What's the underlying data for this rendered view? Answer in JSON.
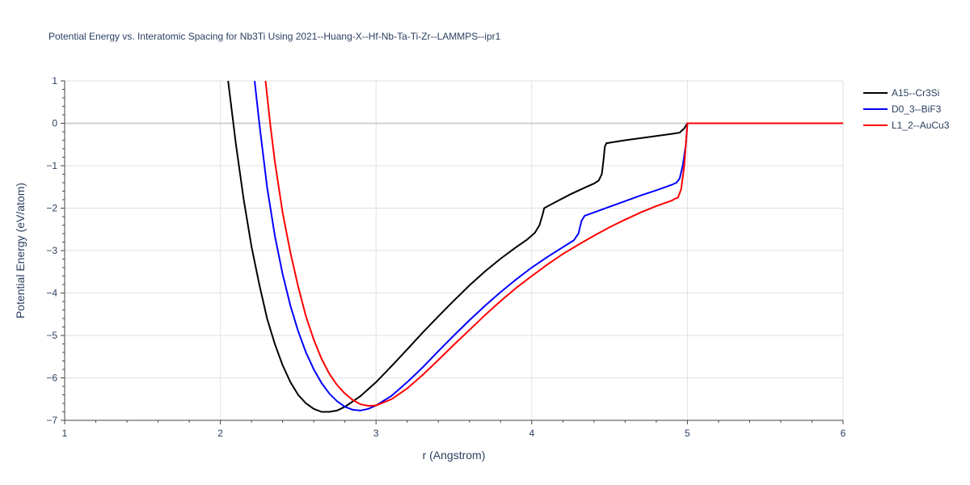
{
  "chart_data": {
    "type": "line",
    "title": "Potential Energy vs. Interatomic Spacing for Nb3Ti Using 2021--Huang-X--Hf-Nb-Ta-Ti-Zr--LAMMPS--ipr1",
    "xlabel": "r (Angstrom)",
    "ylabel": "Potential Energy (eV/atom)",
    "xlim": [
      1,
      6
    ],
    "ylim": [
      -7,
      1
    ],
    "x_ticks": [
      1,
      2,
      3,
      4,
      5,
      6
    ],
    "y_ticks": [
      1,
      0,
      -1,
      -2,
      -3,
      -4,
      -5,
      -6,
      -7
    ],
    "x_tick_labels": [
      "1",
      "2",
      "3",
      "4",
      "5",
      "6"
    ],
    "y_tick_labels": [
      "1",
      "0",
      "−1",
      "−2",
      "−3",
      "−4",
      "−5",
      "−6",
      "−7"
    ],
    "grid": true,
    "legend_position": "top-right outside",
    "series": [
      {
        "name": "A15--Cr3Si",
        "color": "#000000",
        "points": [
          [
            2.05,
            1.0
          ],
          [
            2.1,
            -0.5
          ],
          [
            2.15,
            -1.8
          ],
          [
            2.2,
            -2.9
          ],
          [
            2.25,
            -3.8
          ],
          [
            2.3,
            -4.6
          ],
          [
            2.35,
            -5.2
          ],
          [
            2.4,
            -5.7
          ],
          [
            2.45,
            -6.1
          ],
          [
            2.5,
            -6.4
          ],
          [
            2.55,
            -6.6
          ],
          [
            2.6,
            -6.73
          ],
          [
            2.65,
            -6.8
          ],
          [
            2.7,
            -6.8
          ],
          [
            2.75,
            -6.77
          ],
          [
            2.8,
            -6.68
          ],
          [
            2.9,
            -6.43
          ],
          [
            3.0,
            -6.1
          ],
          [
            3.1,
            -5.72
          ],
          [
            3.2,
            -5.33
          ],
          [
            3.3,
            -4.93
          ],
          [
            3.4,
            -4.55
          ],
          [
            3.5,
            -4.18
          ],
          [
            3.6,
            -3.82
          ],
          [
            3.7,
            -3.49
          ],
          [
            3.8,
            -3.19
          ],
          [
            3.9,
            -2.92
          ],
          [
            3.97,
            -2.74
          ],
          [
            4.02,
            -2.58
          ],
          [
            4.05,
            -2.4
          ],
          [
            4.07,
            -2.15
          ],
          [
            4.08,
            -2.0
          ],
          [
            4.1,
            -1.96
          ],
          [
            4.15,
            -1.86
          ],
          [
            4.25,
            -1.67
          ],
          [
            4.35,
            -1.5
          ],
          [
            4.4,
            -1.42
          ],
          [
            4.43,
            -1.35
          ],
          [
            4.45,
            -1.2
          ],
          [
            4.46,
            -0.9
          ],
          [
            4.47,
            -0.55
          ],
          [
            4.48,
            -0.47
          ],
          [
            4.6,
            -0.4
          ],
          [
            4.7,
            -0.35
          ],
          [
            4.8,
            -0.3
          ],
          [
            4.9,
            -0.25
          ],
          [
            4.95,
            -0.22
          ],
          [
            4.98,
            -0.12
          ],
          [
            5.0,
            0.0
          ],
          [
            5.5,
            0.0
          ],
          [
            6.0,
            0.0
          ]
        ]
      },
      {
        "name": "D0_3--BiF3",
        "color": "#0000ff",
        "points": [
          [
            2.22,
            1.0
          ],
          [
            2.25,
            0.0
          ],
          [
            2.3,
            -1.5
          ],
          [
            2.35,
            -2.65
          ],
          [
            2.4,
            -3.55
          ],
          [
            2.45,
            -4.3
          ],
          [
            2.5,
            -4.9
          ],
          [
            2.55,
            -5.4
          ],
          [
            2.6,
            -5.8
          ],
          [
            2.65,
            -6.12
          ],
          [
            2.7,
            -6.37
          ],
          [
            2.75,
            -6.55
          ],
          [
            2.8,
            -6.68
          ],
          [
            2.85,
            -6.75
          ],
          [
            2.9,
            -6.77
          ],
          [
            2.95,
            -6.73
          ],
          [
            3.0,
            -6.65
          ],
          [
            3.1,
            -6.42
          ],
          [
            3.2,
            -6.1
          ],
          [
            3.3,
            -5.75
          ],
          [
            3.4,
            -5.37
          ],
          [
            3.5,
            -5.0
          ],
          [
            3.6,
            -4.64
          ],
          [
            3.7,
            -4.3
          ],
          [
            3.8,
            -3.98
          ],
          [
            3.9,
            -3.68
          ],
          [
            4.0,
            -3.4
          ],
          [
            4.1,
            -3.15
          ],
          [
            4.2,
            -2.92
          ],
          [
            4.27,
            -2.76
          ],
          [
            4.3,
            -2.6
          ],
          [
            4.32,
            -2.3
          ],
          [
            4.34,
            -2.18
          ],
          [
            4.4,
            -2.1
          ],
          [
            4.55,
            -1.9
          ],
          [
            4.7,
            -1.7
          ],
          [
            4.8,
            -1.58
          ],
          [
            4.9,
            -1.45
          ],
          [
            4.93,
            -1.4
          ],
          [
            4.95,
            -1.3
          ],
          [
            4.97,
            -1.0
          ],
          [
            4.99,
            -0.5
          ],
          [
            5.0,
            0.0
          ],
          [
            5.5,
            0.0
          ],
          [
            6.0,
            0.0
          ]
        ]
      },
      {
        "name": "L1_2--AuCu3",
        "color": "#ff0000",
        "points": [
          [
            2.29,
            1.0
          ],
          [
            2.32,
            0.0
          ],
          [
            2.35,
            -0.9
          ],
          [
            2.4,
            -2.1
          ],
          [
            2.45,
            -3.05
          ],
          [
            2.5,
            -3.85
          ],
          [
            2.55,
            -4.55
          ],
          [
            2.6,
            -5.1
          ],
          [
            2.65,
            -5.55
          ],
          [
            2.7,
            -5.9
          ],
          [
            2.75,
            -6.17
          ],
          [
            2.8,
            -6.37
          ],
          [
            2.85,
            -6.52
          ],
          [
            2.9,
            -6.62
          ],
          [
            2.95,
            -6.66
          ],
          [
            3.0,
            -6.65
          ],
          [
            3.1,
            -6.5
          ],
          [
            3.2,
            -6.25
          ],
          [
            3.3,
            -5.93
          ],
          [
            3.4,
            -5.58
          ],
          [
            3.5,
            -5.22
          ],
          [
            3.6,
            -4.87
          ],
          [
            3.7,
            -4.52
          ],
          [
            3.8,
            -4.19
          ],
          [
            3.9,
            -3.88
          ],
          [
            4.0,
            -3.6
          ],
          [
            4.1,
            -3.33
          ],
          [
            4.2,
            -3.08
          ],
          [
            4.3,
            -2.86
          ],
          [
            4.4,
            -2.65
          ],
          [
            4.5,
            -2.45
          ],
          [
            4.6,
            -2.27
          ],
          [
            4.7,
            -2.1
          ],
          [
            4.8,
            -1.95
          ],
          [
            4.9,
            -1.82
          ],
          [
            4.92,
            -1.78
          ],
          [
            4.94,
            -1.75
          ],
          [
            4.96,
            -1.55
          ],
          [
            4.98,
            -1.0
          ],
          [
            5.0,
            0.0
          ],
          [
            5.5,
            0.0
          ],
          [
            6.0,
            0.0
          ]
        ]
      }
    ]
  }
}
